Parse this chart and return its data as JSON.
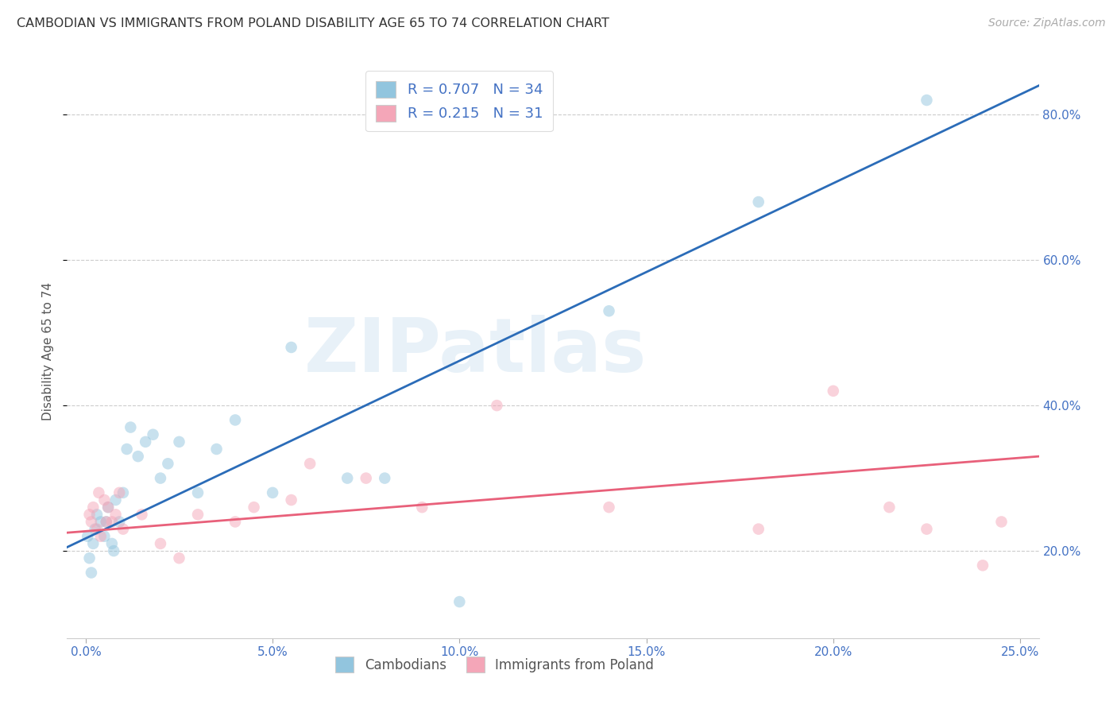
{
  "title": "CAMBODIAN VS IMMIGRANTS FROM POLAND DISABILITY AGE 65 TO 74 CORRELATION CHART",
  "source": "Source: ZipAtlas.com",
  "ylabel": "Disability Age 65 to 74",
  "x_tick_values": [
    0.0,
    5.0,
    10.0,
    15.0,
    20.0,
    25.0
  ],
  "y_tick_values": [
    20.0,
    40.0,
    60.0,
    80.0
  ],
  "xlim": [
    -0.5,
    25.5
  ],
  "ylim": [
    8.0,
    87.0
  ],
  "legend1_label": "R = 0.707   N = 34",
  "legend2_label": "R = 0.215   N = 31",
  "legend_bottom1": "Cambodians",
  "legend_bottom2": "Immigrants from Poland",
  "cambodian_color": "#92c5de",
  "poland_color": "#f4a6b8",
  "trend_cambodian_color": "#2b6cb8",
  "trend_poland_color": "#e8607a",
  "watermark_text": "ZIPatlas",
  "cambodian_x": [
    0.05,
    0.1,
    0.15,
    0.2,
    0.25,
    0.3,
    0.4,
    0.5,
    0.55,
    0.6,
    0.7,
    0.75,
    0.8,
    0.9,
    1.0,
    1.1,
    1.2,
    1.4,
    1.6,
    1.8,
    2.0,
    2.2,
    2.5,
    3.0,
    3.5,
    4.0,
    5.0,
    5.5,
    7.0,
    8.0,
    10.0,
    14.0,
    18.0,
    22.5
  ],
  "cambodian_y": [
    22,
    19,
    17,
    21,
    23,
    25,
    24,
    22,
    24,
    26,
    21,
    20,
    27,
    24,
    28,
    34,
    37,
    33,
    35,
    36,
    30,
    32,
    35,
    28,
    34,
    38,
    28,
    48,
    30,
    30,
    13,
    53,
    68,
    82
  ],
  "poland_x": [
    0.1,
    0.15,
    0.2,
    0.3,
    0.35,
    0.4,
    0.5,
    0.55,
    0.6,
    0.7,
    0.8,
    0.9,
    1.0,
    1.5,
    2.0,
    2.5,
    3.0,
    4.0,
    4.5,
    5.5,
    6.0,
    7.5,
    9.0,
    11.0,
    14.0,
    18.0,
    20.0,
    21.5,
    22.5,
    24.0,
    24.5
  ],
  "poland_y": [
    25,
    24,
    26,
    23,
    28,
    22,
    27,
    24,
    26,
    24,
    25,
    28,
    23,
    25,
    21,
    19,
    25,
    24,
    26,
    27,
    32,
    30,
    26,
    40,
    26,
    23,
    42,
    26,
    23,
    18,
    24
  ],
  "trend_camb_x0": -0.5,
  "trend_camb_y0": 20.5,
  "trend_camb_x1": 25.5,
  "trend_camb_y1": 84.0,
  "trend_pol_x0": -0.5,
  "trend_pol_y0": 22.5,
  "trend_pol_x1": 25.5,
  "trend_pol_y1": 33.0,
  "marker_size": 110,
  "marker_alpha": 0.5,
  "grid_color": "#cccccc",
  "grid_linestyle": "--",
  "grid_linewidth": 0.8
}
